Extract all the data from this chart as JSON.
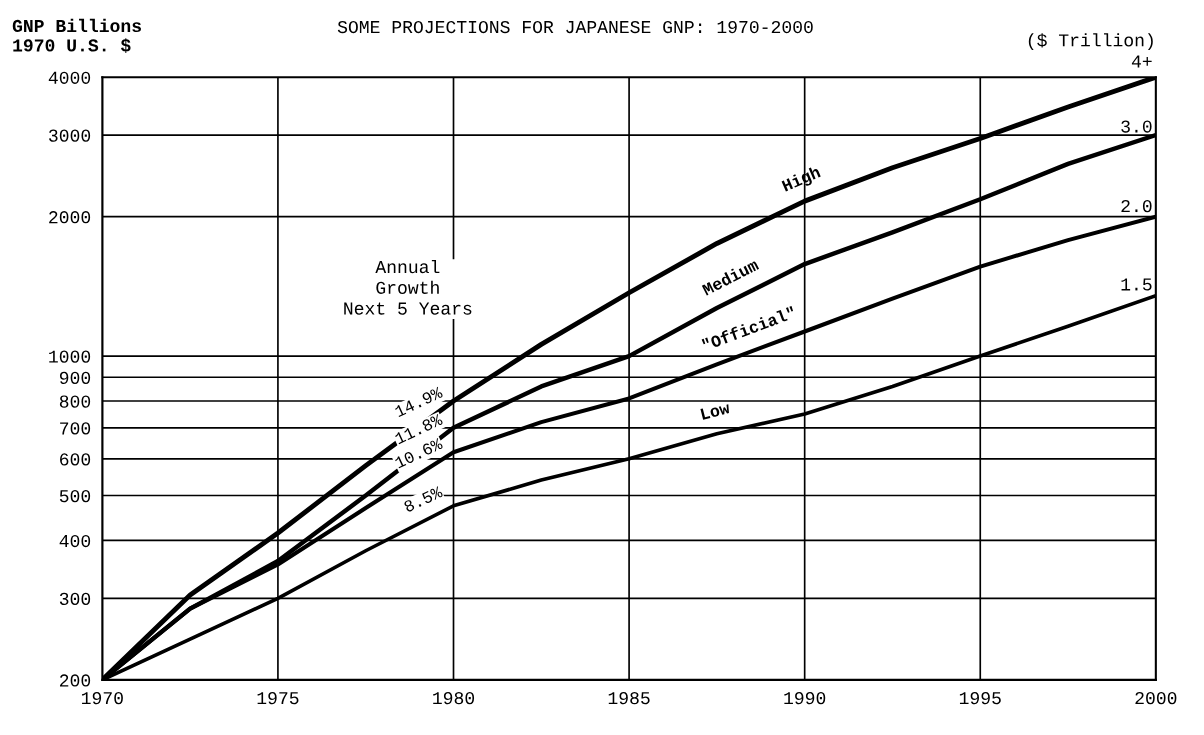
{
  "chart_data": {
    "type": "line",
    "title": "SOME PROJECTIONS FOR JAPANESE GNP: 1970-2000",
    "ylabel": "GNP Billions\n1970 U.S. $",
    "x": [
      1970,
      1972.5,
      1975,
      1977.5,
      1980,
      1982.5,
      1985,
      1987.5,
      1990,
      1992.5,
      1995,
      1997.5,
      2000
    ],
    "series": [
      {
        "name": "High",
        "color": "#000000",
        "values": [
          200,
          305,
          415,
          580,
          800,
          1060,
          1370,
          1750,
          2160,
          2550,
          2950,
          3450,
          4000
        ]
      },
      {
        "name": "Medium",
        "color": "#000000",
        "values": [
          200,
          285,
          361,
          500,
          700,
          860,
          1000,
          1270,
          1580,
          1850,
          2180,
          2600,
          3000
        ]
      },
      {
        "name": "\"Official\"",
        "color": "#000000",
        "values": [
          200,
          285,
          355,
          470,
          620,
          720,
          810,
          960,
          1130,
          1330,
          1560,
          1780,
          2000
        ]
      },
      {
        "name": "Low",
        "color": "#000000",
        "values": [
          200,
          245,
          300,
          380,
          475,
          540,
          600,
          680,
          750,
          860,
          1000,
          1160,
          1350
        ]
      }
    ],
    "annotations": [
      "Annual\nGrowth\nNext 5 Years",
      "($ Trillion)",
      "14.9%",
      "11.8%",
      "10.6%",
      "8.5%",
      "4+",
      "3.0",
      "2.0",
      "1.5"
    ],
    "log": "y",
    "xlim": [
      1970,
      2000
    ],
    "ylim": [
      200,
      4000
    ],
    "xticks": [
      1970,
      1975,
      1980,
      1985,
      1990,
      1995,
      2000
    ],
    "yticks": [
      200,
      300,
      400,
      500,
      600,
      700,
      800,
      900,
      1000,
      2000,
      3000,
      4000
    ],
    "grid": true,
    "marker": "none",
    "line_style": "solid"
  }
}
